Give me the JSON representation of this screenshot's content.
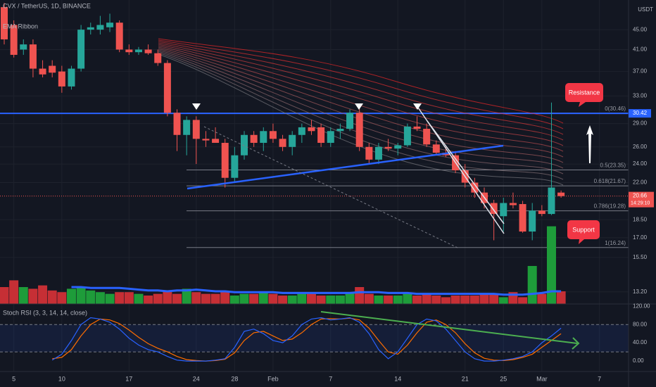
{
  "chart_data": {
    "type": "candlestick",
    "title": "CVX / TetherUS, 1D, BINANCE",
    "indicator_label": "EMA Ribbon",
    "currency": "USDT",
    "categories": [
      null,
      "5",
      null,
      null,
      null,
      null,
      "10",
      null,
      null,
      null,
      null,
      null,
      null,
      "17",
      null,
      null,
      null,
      null,
      null,
      null,
      "24",
      null,
      null,
      null,
      "28",
      null,
      null,
      null,
      "Feb",
      null,
      null,
      null,
      null,
      null,
      "7",
      null,
      null,
      null,
      null,
      null,
      null,
      "14",
      null,
      null,
      null,
      null,
      null,
      null,
      "21",
      null,
      null,
      null,
      "25",
      null,
      null,
      null,
      "Mar",
      null,
      null,
      null,
      null,
      null,
      "7",
      null
    ],
    "open": [
      50,
      46,
      41,
      42,
      37.5,
      38,
      37,
      34.5,
      37.5,
      45,
      45,
      45.5,
      46.5,
      41,
      40.5,
      41,
      40.3,
      38.5,
      30.5,
      27.5,
      29.5,
      27,
      27,
      26.5,
      22.5,
      25,
      27.5,
      26.5,
      28,
      27,
      26,
      27.5,
      28.5,
      28.5,
      26.5,
      28,
      28.3,
      30.5,
      26,
      24.5,
      26,
      25.8,
      26.2,
      28.6,
      28.3,
      26.3,
      25.3,
      25,
      23.3,
      22,
      21,
      20,
      18.8,
      20,
      19.9,
      17.5,
      19.3,
      19,
      21,
      null,
      null,
      null,
      null,
      null
    ],
    "high": [
      51,
      47,
      43,
      43,
      39,
      39,
      38,
      38,
      46,
      46.5,
      48,
      48.5,
      47,
      42,
      41.5,
      42,
      41,
      39,
      31,
      30,
      30,
      28,
      28.5,
      27,
      26,
      28,
      28,
      28.5,
      29,
      27.5,
      28,
      29,
      29.5,
      29,
      28.5,
      29,
      31,
      31,
      26.5,
      26.5,
      27,
      26.5,
      29,
      30,
      29,
      26.8,
      26,
      25.5,
      24,
      22.5,
      21.5,
      20.3,
      20.5,
      21,
      20.2,
      20,
      19.8,
      32,
      21.2,
      null,
      null,
      null,
      null,
      null
    ],
    "low": [
      42,
      39.5,
      40,
      36,
      36,
      36,
      33.5,
      34,
      37,
      44,
      44,
      44.5,
      40.5,
      40,
      40,
      40,
      38,
      30,
      25.5,
      25,
      24,
      26,
      26.5,
      21.5,
      22,
      24.5,
      26,
      25.5,
      26.5,
      25.5,
      25,
      26.5,
      27.5,
      26,
      26,
      27,
      28,
      25.5,
      24,
      24,
      25.5,
      25,
      26,
      28,
      26,
      25,
      24.8,
      23,
      21.5,
      20.5,
      19.5,
      16.8,
      17.5,
      19.5,
      17.4,
      16.8,
      18.8,
      18.9,
      20.5,
      null,
      null,
      null,
      null,
      null
    ],
    "close": [
      43,
      40,
      42,
      37.5,
      36.5,
      36.8,
      34.5,
      37.5,
      45,
      45.5,
      46,
      46.5,
      41,
      40.5,
      41,
      40.3,
      38.5,
      30.5,
      27.5,
      29.5,
      27,
      26.8,
      26.5,
      22.5,
      25,
      27.5,
      26.5,
      28,
      27,
      26,
      27.5,
      28.5,
      28,
      26.5,
      28,
      28.3,
      30.5,
      26,
      24.5,
      26,
      25.8,
      26.2,
      28.6,
      28.3,
      26.3,
      25.3,
      25,
      23.3,
      22,
      21,
      20,
      19,
      20,
      19.8,
      17.5,
      19.3,
      19,
      21.5,
      20.66,
      null,
      null,
      null,
      null,
      null
    ],
    "up_color": "#26a69a",
    "down_color": "#ef5350",
    "log_scale": true,
    "ylim": [
      12.47,
      51.7
    ],
    "yticks": [
      {
        "value": 45,
        "label": "45.00"
      },
      {
        "value": 41,
        "label": "41.00"
      },
      {
        "value": 37,
        "label": "37.00"
      },
      {
        "value": 33,
        "label": "33.00"
      },
      {
        "value": 29,
        "label": "29.00"
      },
      {
        "value": 26,
        "label": "26.00"
      },
      {
        "value": 24,
        "label": "24.00"
      },
      {
        "value": 22,
        "label": "22.00"
      },
      {
        "value": 18.5,
        "label": "18.50"
      },
      {
        "value": 17,
        "label": "17.00"
      },
      {
        "value": 15.5,
        "label": "15.50"
      },
      {
        "value": 13.2,
        "label": "13.20"
      }
    ],
    "grid": true,
    "volume": {
      "values": [
        20,
        28,
        20,
        18,
        22,
        16,
        14,
        18,
        20,
        16,
        14,
        12,
        14,
        14,
        12,
        10,
        12,
        16,
        12,
        18,
        14,
        12,
        12,
        14,
        10,
        12,
        12,
        14,
        12,
        10,
        10,
        12,
        12,
        10,
        10,
        10,
        14,
        20,
        12,
        10,
        10,
        10,
        12,
        10,
        12,
        10,
        8,
        10,
        10,
        10,
        12,
        12,
        8,
        14,
        8,
        45,
        12,
        92,
        15,
        null,
        null,
        null,
        null,
        null
      ],
      "ma": [
        null,
        null,
        null,
        null,
        null,
        null,
        null,
        20,
        20,
        19,
        19,
        19,
        19,
        18,
        17,
        16,
        16,
        15,
        16,
        16,
        17,
        16,
        15,
        15,
        14,
        14,
        14,
        14,
        14,
        13,
        13,
        13,
        13,
        13,
        13,
        13,
        13,
        14,
        14,
        14,
        13,
        13,
        13,
        12,
        12,
        12,
        12,
        12,
        12,
        12,
        12,
        12,
        11,
        11,
        11,
        12,
        13,
        15,
        15,
        null,
        null,
        null,
        null,
        null
      ],
      "ma_color": "#2962ff",
      "up_color": "#1e9c3a",
      "down_color": "#c62f35",
      "ylim": [
        0,
        100
      ]
    },
    "resistance_price": 30.42,
    "last_price": 20.66,
    "countdown": "14:29:10",
    "fib_levels": [
      {
        "value": 30.46,
        "label": "0(30.46)"
      },
      {
        "value": 23.35,
        "label": "0.5(23.35)"
      },
      {
        "value": 21.67,
        "label": "0.618(21.67)"
      },
      {
        "value": 19.28,
        "label": "0.786(19.28)"
      },
      {
        "value": 16.24,
        "label": "1(16.24)"
      }
    ],
    "annotations": [
      "Resistance",
      "Support"
    ],
    "stoch_rsi": {
      "title": "Stoch RSI (3, 3, 14, 14, close)",
      "k": [
        null,
        null,
        null,
        null,
        null,
        2,
        15,
        45,
        80,
        95,
        92,
        85,
        70,
        50,
        35,
        25,
        20,
        10,
        2,
        0,
        0,
        0,
        2,
        5,
        30,
        65,
        70,
        60,
        45,
        40,
        55,
        80,
        92,
        95,
        90,
        92,
        95,
        85,
        60,
        25,
        5,
        20,
        50,
        80,
        92,
        88,
        70,
        45,
        20,
        5,
        0,
        0,
        2,
        5,
        10,
        20,
        40,
        55,
        72,
        null,
        null,
        null,
        null,
        null
      ],
      "d": [
        null,
        null,
        null,
        null,
        null,
        5,
        8,
        25,
        55,
        80,
        92,
        90,
        82,
        68,
        52,
        38,
        28,
        20,
        10,
        3,
        1,
        0,
        1,
        4,
        18,
        45,
        62,
        65,
        55,
        45,
        48,
        62,
        80,
        92,
        93,
        92,
        94,
        90,
        72,
        45,
        20,
        15,
        35,
        62,
        85,
        90,
        80,
        62,
        38,
        18,
        6,
        2,
        1,
        3,
        8,
        15,
        30,
        45,
        60,
        null,
        null,
        null,
        null,
        null
      ],
      "k_color": "#2962ff",
      "d_color": "#ff6d00",
      "ylim": [
        -23,
        125
      ],
      "yticks": [
        {
          "value": 120,
          "label": "120.00"
        },
        {
          "value": 80,
          "label": "80.00"
        },
        {
          "value": 40,
          "label": "40.00"
        },
        {
          "value": 0,
          "label": "0.00"
        }
      ],
      "bands": [
        80,
        20
      ]
    }
  }
}
